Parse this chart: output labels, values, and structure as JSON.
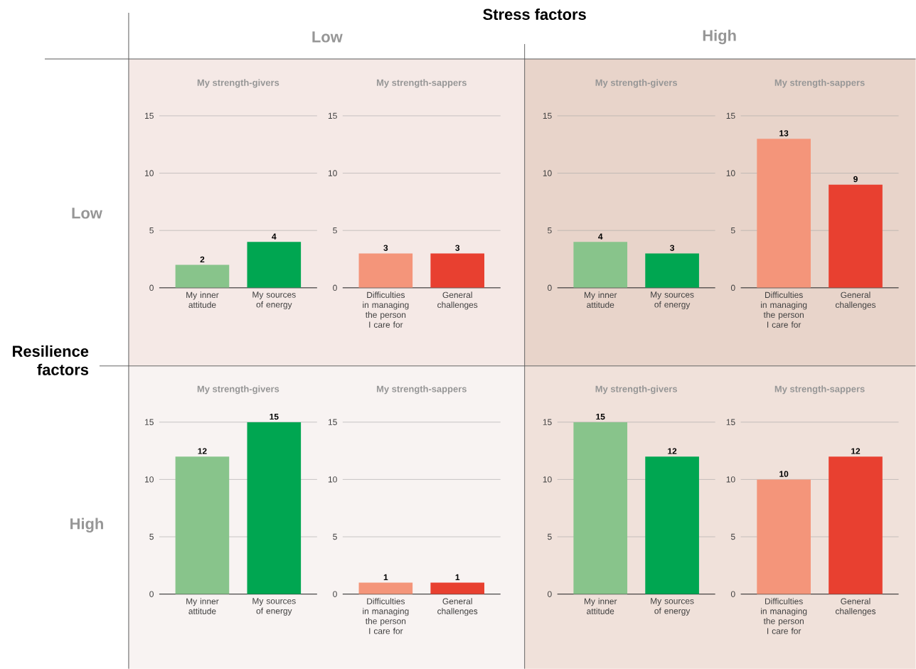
{
  "chart_data": [
    {
      "type": "other",
      "title": "Stress factors",
      "annotations": [
        "Low",
        "High"
      ]
    },
    {
      "type": "other",
      "title": "Resilience factors",
      "annotations": [
        "Low",
        "High"
      ]
    },
    {
      "type": "bar",
      "title": "My strength-givers",
      "categories": [
        "My inner attitude",
        "My sources of energy"
      ],
      "values": [
        2,
        4
      ],
      "colors": [
        "#88c48b",
        "#00a651"
      ],
      "ylim": [
        0,
        15
      ],
      "yticks": [
        0,
        5,
        10,
        15
      ],
      "grid": "y",
      "data_labels": true
    },
    {
      "type": "bar",
      "title": "My strength-sappers",
      "categories": [
        "Difficulties in managing the person I care for",
        "General challenges"
      ],
      "values": [
        3,
        3
      ],
      "colors": [
        "#f4957a",
        "#e84030"
      ],
      "ylim": [
        0,
        15
      ],
      "yticks": [
        0,
        5,
        10,
        15
      ],
      "grid": "y",
      "data_labels": true
    },
    {
      "type": "bar",
      "title": "My strength-givers",
      "categories": [
        "My inner attitude",
        "My sources of energy"
      ],
      "values": [
        4,
        3
      ],
      "colors": [
        "#88c48b",
        "#00a651"
      ],
      "ylim": [
        0,
        15
      ],
      "yticks": [
        0,
        5,
        10,
        15
      ],
      "grid": "y",
      "data_labels": true
    },
    {
      "type": "bar",
      "title": "My strength-sappers",
      "categories": [
        "Difficulties in managing the person I care for",
        "General challenges"
      ],
      "values": [
        13,
        9
      ],
      "colors": [
        "#f4957a",
        "#e84030"
      ],
      "ylim": [
        0,
        15
      ],
      "yticks": [
        0,
        5,
        10,
        15
      ],
      "grid": "y",
      "data_labels": true
    },
    {
      "type": "bar",
      "title": "My strength-givers",
      "categories": [
        "My inner attitude",
        "My sources of energy"
      ],
      "values": [
        12,
        15
      ],
      "colors": [
        "#88c48b",
        "#00a651"
      ],
      "ylim": [
        0,
        15
      ],
      "yticks": [
        0,
        5,
        10,
        15
      ],
      "grid": "y",
      "data_labels": true
    },
    {
      "type": "bar",
      "title": "My strength-sappers",
      "categories": [
        "Difficulties in managing the person I care for",
        "General challenges"
      ],
      "values": [
        1,
        1
      ],
      "colors": [
        "#f4957a",
        "#e84030"
      ],
      "ylim": [
        0,
        15
      ],
      "yticks": [
        0,
        5,
        10,
        15
      ],
      "grid": "y",
      "data_labels": true
    },
    {
      "type": "bar",
      "title": "My strength-givers",
      "categories": [
        "My inner attitude",
        "My sources of energy"
      ],
      "values": [
        15,
        12
      ],
      "colors": [
        "#88c48b",
        "#00a651"
      ],
      "ylim": [
        0,
        15
      ],
      "yticks": [
        0,
        5,
        10,
        15
      ],
      "grid": "y",
      "data_labels": true
    },
    {
      "type": "bar",
      "title": "My strength-sappers",
      "categories": [
        "Difficulties in managing the person I care for",
        "General challenges"
      ],
      "values": [
        10,
        12
      ],
      "colors": [
        "#f4957a",
        "#e84030"
      ],
      "ylim": [
        0,
        15
      ],
      "yticks": [
        0,
        5,
        10,
        15
      ],
      "grid": "y",
      "data_labels": true
    }
  ]
}
